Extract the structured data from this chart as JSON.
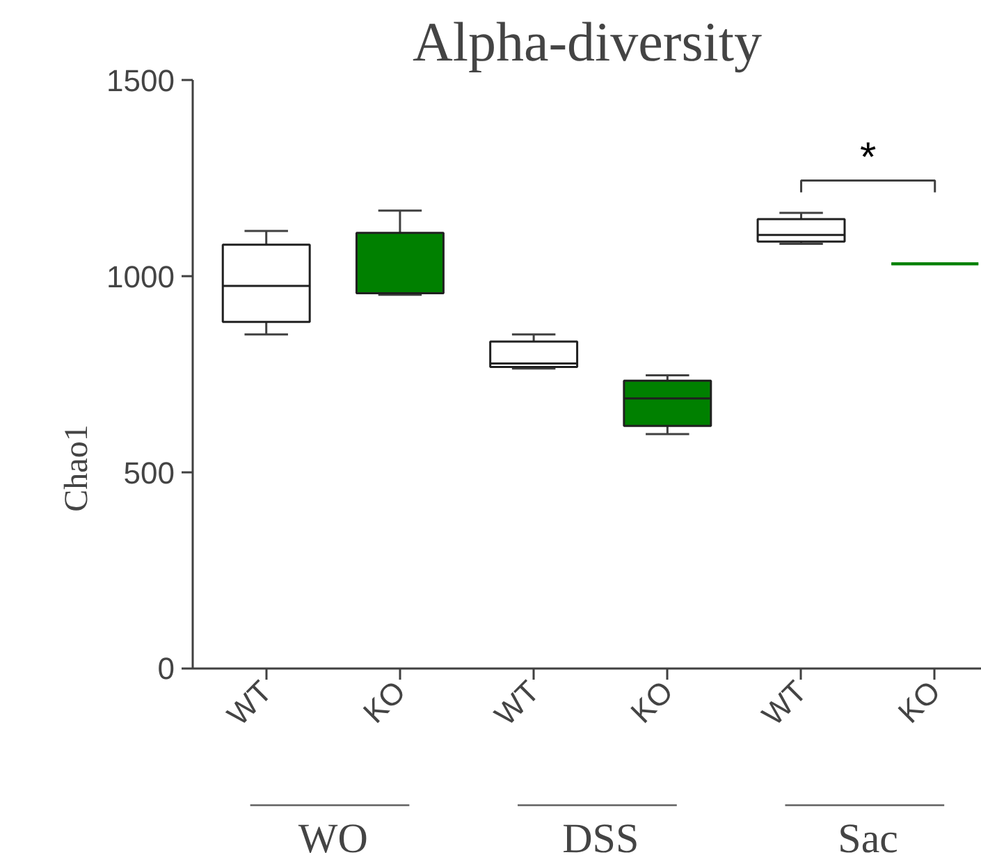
{
  "chart_data": {
    "type": "box",
    "title": "Alpha-diversity",
    "ylabel": "Chao1",
    "categories": [
      "WT",
      "KO",
      "WT",
      "KO",
      "WT",
      "KO"
    ],
    "colors": [
      "#ffffff",
      "#008000",
      "#ffffff",
      "#008000",
      "#ffffff",
      "#008000"
    ],
    "boxes": [
      {
        "low": 851,
        "q1": 883,
        "median": 975,
        "q3": 1080,
        "high": 1115
      },
      {
        "low": 952,
        "q1": 956,
        "median": 956,
        "q3": 1110,
        "high": 1167
      },
      {
        "low": 764,
        "q1": 768,
        "median": 777,
        "q3": 833,
        "high": 851
      },
      {
        "low": 597,
        "q1": 618,
        "median": 688,
        "q3": 733,
        "high": 747
      },
      {
        "low": 1082,
        "q1": 1088,
        "median": 1105,
        "q3": 1145,
        "high": 1161
      },
      {
        "low": 1031,
        "q1": 1031,
        "median": 1031,
        "q3": 1031,
        "high": 1031
      }
    ],
    "annotations": [
      "WO",
      "DSS",
      "Sac",
      "*"
    ],
    "ylim": [
      0,
      1500
    ],
    "yticks": [
      0,
      500,
      1000,
      1500
    ],
    "grid": false
  }
}
